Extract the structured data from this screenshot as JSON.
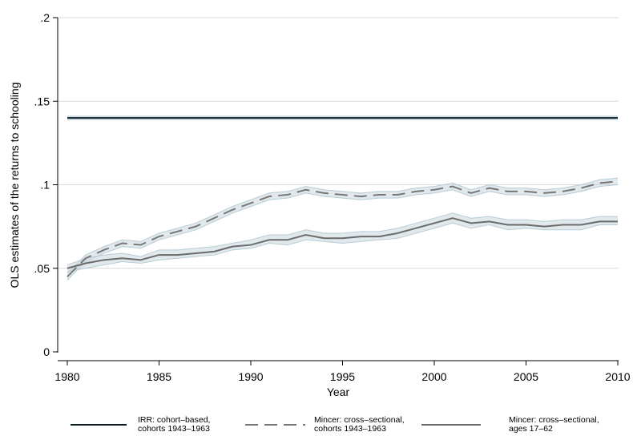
{
  "chart_data": {
    "type": "line",
    "title": "",
    "xlabel": "Year",
    "ylabel": "OLS estimates of the returns to schooling",
    "xlim": [
      1980,
      2010
    ],
    "ylim": [
      0,
      0.2
    ],
    "x_ticks": [
      1980,
      1985,
      1990,
      1995,
      2000,
      2005,
      2010
    ],
    "x_tick_labels": [
      "1980",
      "1985",
      "1990",
      "1995",
      "2000",
      "2005",
      "2010"
    ],
    "y_ticks": [
      0,
      0.05,
      0.1,
      0.15,
      0.2
    ],
    "y_tick_labels": [
      "0",
      ".05",
      ".1",
      ".15",
      ".2"
    ],
    "grid": "horizontal",
    "legend_position": "bottom",
    "x": [
      1980,
      1981,
      1982,
      1983,
      1984,
      1985,
      1986,
      1987,
      1988,
      1989,
      1990,
      1991,
      1992,
      1993,
      1994,
      1995,
      1996,
      1997,
      1998,
      1999,
      2000,
      2001,
      2002,
      2003,
      2004,
      2005,
      2006,
      2007,
      2008,
      2009,
      2010
    ],
    "series": [
      {
        "name_lines": [
          "IRR: cohort–based,",
          "cohorts 1943–1963"
        ],
        "style": "solid-dark",
        "color": "#0b1e26",
        "band_color": "#c9d7de",
        "values": [
          0.14,
          0.14,
          0.14,
          0.14,
          0.14,
          0.14,
          0.14,
          0.14,
          0.14,
          0.14,
          0.14,
          0.14,
          0.14,
          0.14,
          0.14,
          0.14,
          0.14,
          0.14,
          0.14,
          0.14,
          0.14,
          0.14,
          0.14,
          0.14,
          0.14,
          0.14,
          0.14,
          0.14,
          0.14,
          0.14,
          0.14
        ],
        "lower": [
          0.139,
          0.139,
          0.139,
          0.139,
          0.139,
          0.139,
          0.139,
          0.139,
          0.139,
          0.139,
          0.139,
          0.139,
          0.139,
          0.139,
          0.139,
          0.139,
          0.139,
          0.139,
          0.139,
          0.139,
          0.139,
          0.139,
          0.139,
          0.139,
          0.139,
          0.139,
          0.139,
          0.139,
          0.139,
          0.139,
          0.139
        ],
        "upper": [
          0.141,
          0.141,
          0.141,
          0.141,
          0.141,
          0.141,
          0.141,
          0.141,
          0.141,
          0.141,
          0.141,
          0.141,
          0.141,
          0.141,
          0.141,
          0.141,
          0.141,
          0.141,
          0.141,
          0.141,
          0.141,
          0.141,
          0.141,
          0.141,
          0.141,
          0.141,
          0.141,
          0.141,
          0.141,
          0.141,
          0.141
        ]
      },
      {
        "name_lines": [
          "Mincer: cross–sectional,",
          "cohorts 1943–1963"
        ],
        "style": "dashed",
        "color": "#777777",
        "band_color": "#c9d7de",
        "values": [
          0.045,
          0.056,
          0.061,
          0.065,
          0.064,
          0.069,
          0.072,
          0.075,
          0.08,
          0.085,
          0.089,
          0.093,
          0.094,
          0.097,
          0.095,
          0.094,
          0.093,
          0.094,
          0.094,
          0.096,
          0.097,
          0.099,
          0.095,
          0.098,
          0.096,
          0.096,
          0.095,
          0.096,
          0.098,
          0.101,
          0.102
        ],
        "lower": [
          0.043,
          0.054,
          0.059,
          0.063,
          0.062,
          0.067,
          0.07,
          0.073,
          0.078,
          0.083,
          0.087,
          0.091,
          0.092,
          0.095,
          0.093,
          0.092,
          0.091,
          0.092,
          0.092,
          0.094,
          0.095,
          0.097,
          0.093,
          0.096,
          0.094,
          0.094,
          0.093,
          0.094,
          0.096,
          0.099,
          0.1
        ],
        "upper": [
          0.047,
          0.058,
          0.063,
          0.067,
          0.066,
          0.071,
          0.074,
          0.077,
          0.082,
          0.087,
          0.091,
          0.095,
          0.096,
          0.099,
          0.097,
          0.096,
          0.095,
          0.096,
          0.096,
          0.098,
          0.099,
          0.101,
          0.097,
          0.1,
          0.098,
          0.098,
          0.097,
          0.098,
          0.1,
          0.103,
          0.104
        ]
      },
      {
        "name_lines": [
          "Mincer: cross–sectional,",
          "ages 17–62"
        ],
        "style": "solid-gray",
        "color": "#6b6b6b",
        "band_color": "#c9d7de",
        "values": [
          0.05,
          0.053,
          0.055,
          0.056,
          0.055,
          0.058,
          0.058,
          0.059,
          0.06,
          0.063,
          0.064,
          0.067,
          0.067,
          0.07,
          0.068,
          0.068,
          0.069,
          0.069,
          0.071,
          0.074,
          0.077,
          0.08,
          0.077,
          0.078,
          0.076,
          0.076,
          0.075,
          0.076,
          0.076,
          0.078,
          0.078
        ],
        "lower": [
          0.048,
          0.05,
          0.052,
          0.054,
          0.053,
          0.055,
          0.056,
          0.057,
          0.058,
          0.061,
          0.062,
          0.065,
          0.064,
          0.067,
          0.066,
          0.065,
          0.066,
          0.067,
          0.068,
          0.071,
          0.074,
          0.077,
          0.074,
          0.076,
          0.073,
          0.074,
          0.073,
          0.073,
          0.073,
          0.076,
          0.076
        ],
        "upper": [
          0.052,
          0.056,
          0.058,
          0.059,
          0.057,
          0.061,
          0.061,
          0.062,
          0.063,
          0.065,
          0.067,
          0.07,
          0.07,
          0.073,
          0.071,
          0.071,
          0.072,
          0.072,
          0.074,
          0.077,
          0.08,
          0.083,
          0.08,
          0.081,
          0.079,
          0.079,
          0.078,
          0.079,
          0.079,
          0.081,
          0.081
        ]
      }
    ]
  }
}
